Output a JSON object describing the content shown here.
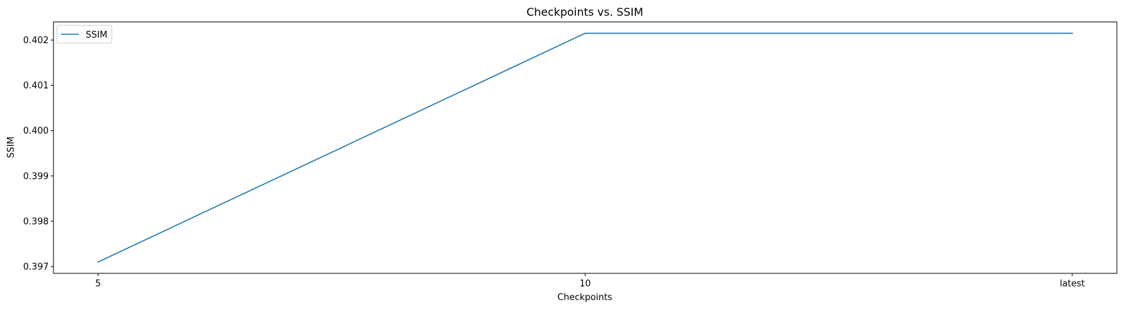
{
  "chart_data": {
    "type": "line",
    "title": "Checkpoints vs. SSIM",
    "xlabel": "Checkpoints",
    "ylabel": "SSIM",
    "categories": [
      "5",
      "10",
      "latest"
    ],
    "series": [
      {
        "name": "SSIM",
        "values": [
          0.3971,
          0.40215,
          0.40215
        ],
        "color": "#1f77b4"
      }
    ],
    "yticks": [
      0.397,
      0.398,
      0.399,
      0.4,
      0.401,
      0.402
    ],
    "ytick_labels": [
      "0.397",
      "0.398",
      "0.399",
      "0.400",
      "0.401",
      "0.402"
    ],
    "ylim": [
      0.39685,
      0.4024
    ],
    "grid": false,
    "legend_position": "upper-left"
  }
}
